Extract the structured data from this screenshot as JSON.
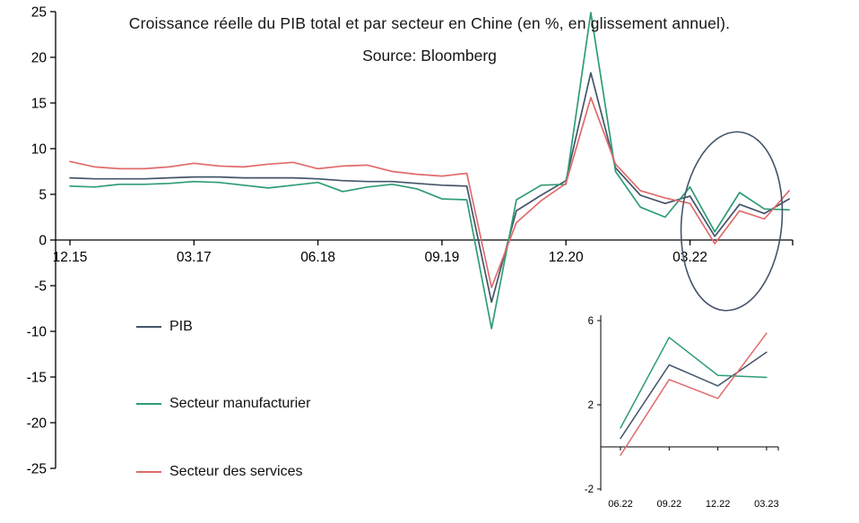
{
  "title": {
    "line1": "Croissance réelle du PIB total et par secteur en Chine (en %, en glissement annuel).",
    "line2": "Source: Bloomberg"
  },
  "colors": {
    "pib": "#44546a",
    "manufacturing": "#2e9c74",
    "services": "#e06b6b",
    "axis": "#000000",
    "ellipse": "#44546a"
  },
  "legend": [
    {
      "label": "PIB",
      "color": "#44546a"
    },
    {
      "label": "Secteur manufacturier",
      "color": "#2e9c74"
    },
    {
      "label": "Secteur des services",
      "color": "#e06b6b"
    }
  ],
  "chart_data": [
    {
      "type": "line",
      "name": "main",
      "title": "Croissance réelle du PIB total et par secteur en Chine (en %, en glissement annuel).",
      "subtitle": "Source: Bloomberg",
      "grid": false,
      "legend_position": "lower-left",
      "x": [
        "12.15",
        "03.16",
        "06.16",
        "09.16",
        "12.16",
        "03.17",
        "06.17",
        "09.17",
        "12.17",
        "03.18",
        "06.18",
        "09.18",
        "12.18",
        "03.19",
        "06.19",
        "09.19",
        "12.19",
        "03.20",
        "06.20",
        "09.20",
        "12.20",
        "03.21",
        "06.21",
        "09.21",
        "12.21",
        "03.22",
        "06.22",
        "09.22",
        "12.22",
        "03.23"
      ],
      "x_tick_labels": [
        "12.15",
        "03.17",
        "06.18",
        "09.19",
        "12.20",
        "03.22"
      ],
      "x_tick_indices": [
        0,
        5,
        10,
        15,
        20,
        25
      ],
      "y_ticks": [
        25,
        20,
        15,
        10,
        5,
        0,
        -5,
        -10,
        -15,
        -20,
        -25
      ],
      "ylim": [
        -25,
        25
      ],
      "series": [
        {
          "name": "PIB",
          "color": "#44546a",
          "values": [
            6.8,
            6.7,
            6.7,
            6.7,
            6.8,
            6.9,
            6.9,
            6.8,
            6.8,
            6.8,
            6.7,
            6.5,
            6.4,
            6.4,
            6.2,
            6.0,
            5.9,
            -6.8,
            3.2,
            4.9,
            6.5,
            18.3,
            7.9,
            4.9,
            4.0,
            4.8,
            0.4,
            3.9,
            2.9,
            4.5
          ]
        },
        {
          "name": "Secteur manufacturier",
          "color": "#2e9c74",
          "values": [
            5.9,
            5.8,
            6.1,
            6.1,
            6.2,
            6.4,
            6.3,
            6.0,
            5.7,
            6.0,
            6.3,
            5.3,
            5.8,
            6.1,
            5.6,
            4.5,
            4.4,
            -9.7,
            4.4,
            6.0,
            6.1,
            24.9,
            7.5,
            3.6,
            2.5,
            5.8,
            0.9,
            5.2,
            3.4,
            3.3
          ]
        },
        {
          "name": "Secteur des services",
          "color": "#e06b6b",
          "values": [
            8.6,
            8.0,
            7.8,
            7.8,
            8.0,
            8.4,
            8.1,
            8.0,
            8.3,
            8.5,
            7.8,
            8.1,
            8.2,
            7.5,
            7.2,
            7.0,
            7.3,
            -5.2,
            1.9,
            4.3,
            6.2,
            15.6,
            8.3,
            5.4,
            4.6,
            4.0,
            -0.4,
            3.2,
            2.3,
            5.4
          ]
        }
      ],
      "annotation": {
        "type": "ellipse",
        "highlights": "06.22 - 03.23"
      }
    },
    {
      "type": "line",
      "name": "inset",
      "grid": false,
      "x": [
        "06.22",
        "09.22",
        "12.22",
        "03.23"
      ],
      "y_ticks": [
        6,
        2,
        -2
      ],
      "ylim": [
        -2,
        6
      ],
      "series": [
        {
          "name": "PIB",
          "color": "#44546a",
          "values": [
            0.4,
            3.9,
            2.9,
            4.5
          ]
        },
        {
          "name": "Secteur manufacturier",
          "color": "#2e9c74",
          "values": [
            0.9,
            5.2,
            3.4,
            3.3
          ]
        },
        {
          "name": "Secteur des services",
          "color": "#e06b6b",
          "values": [
            -0.4,
            3.2,
            2.3,
            5.4
          ]
        }
      ]
    }
  ]
}
